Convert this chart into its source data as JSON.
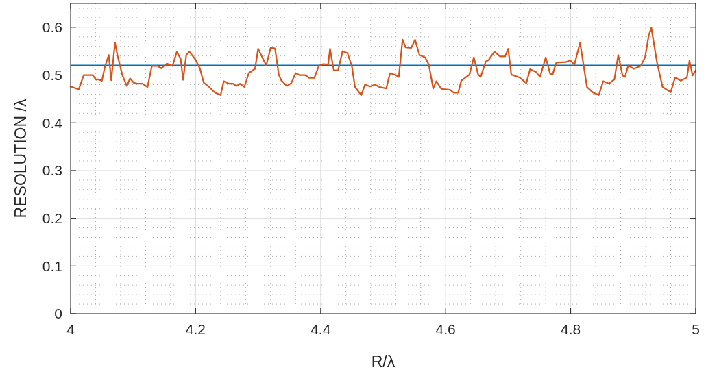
{
  "chart_data": {
    "type": "line",
    "xlabel": "R/λ",
    "ylabel": "RESOLUTION /λ",
    "xlim": [
      4,
      5
    ],
    "ylim": [
      0,
      0.65
    ],
    "xticks": [
      4,
      4.2,
      4.4,
      4.6,
      4.8,
      5
    ],
    "yticks": [
      0,
      0.1,
      0.2,
      0.3,
      0.4,
      0.5,
      0.6
    ],
    "grid": true,
    "ref_lines": [
      {
        "axis": "y",
        "value": 0.52,
        "color": "#0072bd"
      }
    ],
    "series": [
      {
        "color": "#d95319",
        "x": [
          4.0,
          4.013,
          4.021,
          4.035,
          4.041,
          4.044,
          4.05,
          4.055,
          4.061,
          4.065,
          4.071,
          4.075,
          4.083,
          4.09,
          4.095,
          4.101,
          4.106,
          4.115,
          4.123,
          4.13,
          4.139,
          4.145,
          4.154,
          4.163,
          4.17,
          4.176,
          4.18,
          4.185,
          4.19,
          4.2,
          4.207,
          4.213,
          4.22,
          4.231,
          4.24,
          4.245,
          4.253,
          4.26,
          4.265,
          4.271,
          4.278,
          4.285,
          4.295,
          4.3,
          4.313,
          4.32,
          4.327,
          4.333,
          4.337,
          4.346,
          4.353,
          4.36,
          4.366,
          4.375,
          4.382,
          4.39,
          4.397,
          4.404,
          4.412,
          4.415,
          4.421,
          4.428,
          4.435,
          4.443,
          4.45,
          4.455,
          4.465,
          4.471,
          4.479,
          4.487,
          4.494,
          4.505,
          4.511,
          4.52,
          4.525,
          4.531,
          4.536,
          4.545,
          4.551,
          4.558,
          4.567,
          4.573,
          4.58,
          4.585,
          4.593,
          4.607,
          4.613,
          4.62,
          4.625,
          4.638,
          4.645,
          4.652,
          4.656,
          4.664,
          4.669,
          4.678,
          4.687,
          4.695,
          4.7,
          4.705,
          4.718,
          4.729,
          4.735,
          4.744,
          4.751,
          4.76,
          4.767,
          4.771,
          4.777,
          4.792,
          4.799,
          4.806,
          4.815,
          4.826,
          4.836,
          4.845,
          4.852,
          4.861,
          4.87,
          4.876,
          4.883,
          4.887,
          4.892,
          4.901,
          4.912,
          4.919,
          4.925,
          4.929,
          4.938,
          4.947,
          4.96,
          4.967,
          4.976,
          4.986,
          4.99,
          4.995,
          5.0
        ],
        "values": [
          0.476,
          0.47,
          0.5,
          0.5,
          0.49,
          0.491,
          0.488,
          0.518,
          0.542,
          0.489,
          0.568,
          0.541,
          0.499,
          0.477,
          0.493,
          0.484,
          0.482,
          0.482,
          0.475,
          0.519,
          0.519,
          0.514,
          0.524,
          0.519,
          0.549,
          0.534,
          0.49,
          0.542,
          0.549,
          0.532,
          0.513,
          0.484,
          0.477,
          0.463,
          0.458,
          0.487,
          0.482,
          0.482,
          0.477,
          0.482,
          0.475,
          0.504,
          0.513,
          0.555,
          0.52,
          0.557,
          0.556,
          0.501,
          0.489,
          0.477,
          0.483,
          0.504,
          0.5,
          0.5,
          0.494,
          0.494,
          0.519,
          0.523,
          0.522,
          0.555,
          0.51,
          0.51,
          0.55,
          0.546,
          0.518,
          0.475,
          0.458,
          0.48,
          0.476,
          0.48,
          0.475,
          0.472,
          0.504,
          0.5,
          0.496,
          0.574,
          0.558,
          0.557,
          0.574,
          0.542,
          0.537,
          0.522,
          0.472,
          0.487,
          0.471,
          0.469,
          0.463,
          0.463,
          0.488,
          0.501,
          0.537,
          0.501,
          0.496,
          0.528,
          0.532,
          0.549,
          0.539,
          0.539,
          0.555,
          0.501,
          0.495,
          0.483,
          0.512,
          0.507,
          0.496,
          0.537,
          0.503,
          0.501,
          0.526,
          0.527,
          0.531,
          0.522,
          0.568,
          0.475,
          0.463,
          0.458,
          0.487,
          0.482,
          0.491,
          0.542,
          0.499,
          0.496,
          0.52,
          0.513,
          0.519,
          0.537,
          0.584,
          0.599,
          0.527,
          0.475,
          0.464,
          0.495,
          0.488,
          0.495,
          0.53,
          0.499,
          0.51
        ]
      }
    ]
  }
}
